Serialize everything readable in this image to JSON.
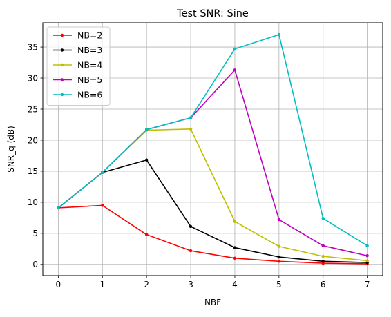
{
  "chart_data": {
    "type": "line",
    "title": "Test SNR: Sine",
    "xlabel": "NBF",
    "ylabel": "SNR_q (dB)",
    "x": [
      0,
      1,
      2,
      3,
      4,
      5,
      6,
      7
    ],
    "xlim": [
      -0.35,
      7.35
    ],
    "ylim": [
      -1.8,
      38.9
    ],
    "xticks": [
      "0",
      "1",
      "2",
      "3",
      "4",
      "5",
      "6",
      "7"
    ],
    "yticks": [
      "0",
      "5",
      "10",
      "15",
      "20",
      "25",
      "30",
      "35"
    ],
    "grid": true,
    "legend_position": "upper-left",
    "series": [
      {
        "name": "NB=2",
        "color": "#ff0000",
        "values": [
          9.1,
          9.5,
          4.8,
          2.2,
          1.0,
          0.5,
          0.2,
          0.1
        ]
      },
      {
        "name": "NB=3",
        "color": "#000000",
        "values": [
          9.1,
          14.8,
          16.8,
          6.1,
          2.7,
          1.2,
          0.5,
          0.3
        ]
      },
      {
        "name": "NB=4",
        "color": "#bfbf00",
        "values": [
          9.1,
          14.8,
          21.6,
          21.8,
          6.9,
          2.9,
          1.3,
          0.6
        ]
      },
      {
        "name": "NB=5",
        "color": "#bf00bf",
        "values": [
          9.1,
          14.8,
          21.7,
          23.6,
          31.3,
          7.2,
          3.0,
          1.4
        ]
      },
      {
        "name": "NB=6",
        "color": "#00bfbf",
        "values": [
          9.1,
          14.8,
          21.7,
          23.6,
          34.7,
          37.0,
          7.4,
          3.0
        ]
      }
    ]
  }
}
